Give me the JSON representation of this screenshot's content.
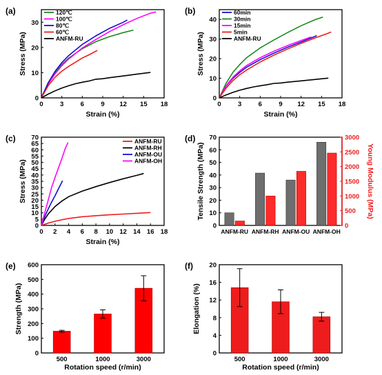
{
  "chart_data": [
    {
      "panel": "(a)",
      "type": "line",
      "xlabel": "Strain (%)",
      "ylabel": "Stress (MPa)",
      "xlim": [
        0,
        18
      ],
      "ylim": [
        0,
        35
      ],
      "xticks": [
        0,
        3,
        6,
        9,
        12,
        15,
        18
      ],
      "yticks": [
        0,
        10,
        20,
        30
      ],
      "legend_position": "top-left",
      "series": [
        {
          "name": "120℃",
          "color": "#1a8a1a",
          "points": [
            [
              0,
              0
            ],
            [
              1,
              6
            ],
            [
              2,
              10
            ],
            [
              3,
              13.3
            ],
            [
              4,
              15.8
            ],
            [
              6,
              19.5
            ],
            [
              8,
              22.3
            ],
            [
              10,
              24.3
            ],
            [
              12,
              25.9
            ],
            [
              13.5,
              26.9
            ]
          ]
        },
        {
          "name": "100℃",
          "color": "#ff00ff",
          "points": [
            [
              0,
              0
            ],
            [
              1,
              5.5
            ],
            [
              2,
              9.5
            ],
            [
              3,
              12.8
            ],
            [
              4,
              15.4
            ],
            [
              6,
              19.8
            ],
            [
              8,
              23.2
            ],
            [
              10,
              26.3
            ],
            [
              12,
              29
            ],
            [
              14,
              31.5
            ],
            [
              16,
              33.6
            ],
            [
              16.8,
              34.1
            ]
          ]
        },
        {
          "name": "80℃",
          "color": "#1111cc",
          "points": [
            [
              0,
              0
            ],
            [
              1,
              6
            ],
            [
              2,
              10.5
            ],
            [
              3,
              14
            ],
            [
              4,
              16.8
            ],
            [
              6,
              21.2
            ],
            [
              8,
              24.6
            ],
            [
              10,
              27.6
            ],
            [
              12,
              30
            ],
            [
              12.6,
              30.9
            ]
          ]
        },
        {
          "name": "60℃",
          "color": "#ee1c1c",
          "points": [
            [
              0,
              0
            ],
            [
              1,
              4.8
            ],
            [
              2,
              8.2
            ],
            [
              3,
              10.6
            ],
            [
              4,
              12.5
            ],
            [
              6,
              15.8
            ],
            [
              7,
              17.1
            ],
            [
              8.2,
              18.8
            ]
          ]
        },
        {
          "name": "ANFM-RU",
          "color": "#000000",
          "points": [
            [
              0,
              0
            ],
            [
              1,
              1.5
            ],
            [
              2,
              2.8
            ],
            [
              3,
              3.9
            ],
            [
              4,
              4.8
            ],
            [
              5,
              5.6
            ],
            [
              6,
              6.2
            ],
            [
              7,
              6.7
            ],
            [
              8,
              7.4
            ],
            [
              9,
              7.6
            ],
            [
              10,
              8
            ],
            [
              12,
              8.7
            ],
            [
              14,
              9.4
            ],
            [
              16,
              10.1
            ]
          ]
        }
      ]
    },
    {
      "panel": "(b)",
      "type": "line",
      "xlabel": "Strain (%)",
      "ylabel": "Stress (MPa)",
      "xlim": [
        0,
        18
      ],
      "ylim": [
        0,
        45
      ],
      "xticks": [
        0,
        3,
        6,
        9,
        12,
        15,
        18
      ],
      "yticks": [
        0,
        10,
        20,
        30,
        40
      ],
      "legend_position": "top-left",
      "series": [
        {
          "name": "60min",
          "color": "#1111cc",
          "points": [
            [
              0,
              0
            ],
            [
              1,
              6
            ],
            [
              2,
              10
            ],
            [
              3,
              13
            ],
            [
              4,
              15.6
            ],
            [
              6,
              19.5
            ],
            [
              8,
              22.8
            ],
            [
              10,
              25.8
            ],
            [
              12,
              28.5
            ],
            [
              14,
              31.3
            ],
            [
              14.3,
              31.8
            ]
          ]
        },
        {
          "name": "30min",
          "color": "#1a8a1a",
          "points": [
            [
              0,
              0
            ],
            [
              1,
              7.5
            ],
            [
              2,
              13
            ],
            [
              3,
              17
            ],
            [
              4,
              20.5
            ],
            [
              6,
              25.5
            ],
            [
              8,
              29.5
            ],
            [
              10,
              33.3
            ],
            [
              12,
              36.8
            ],
            [
              14,
              39.8
            ],
            [
              15.2,
              41.2
            ]
          ]
        },
        {
          "name": "15min",
          "color": "#ff00ff",
          "points": [
            [
              0,
              0
            ],
            [
              1,
              6.2
            ],
            [
              2,
              10.5
            ],
            [
              3,
              13.8
            ],
            [
              4,
              16.5
            ],
            [
              6,
              20.5
            ],
            [
              8,
              23.8
            ],
            [
              10,
              26.7
            ],
            [
              12,
              29.3
            ],
            [
              13.5,
              31.1
            ]
          ]
        },
        {
          "name": "5min",
          "color": "#ee1c1c",
          "points": [
            [
              0,
              0
            ],
            [
              1,
              5
            ],
            [
              2,
              8.8
            ],
            [
              3,
              11.8
            ],
            [
              4,
              14.2
            ],
            [
              6,
              18.3
            ],
            [
              8,
              21.8
            ],
            [
              10,
              24.9
            ],
            [
              12,
              27.8
            ],
            [
              14,
              30.5
            ],
            [
              16,
              33
            ],
            [
              16.4,
              33.6
            ]
          ]
        },
        {
          "name": "ANFM-RU",
          "color": "#000000",
          "points": [
            [
              0,
              0
            ],
            [
              1,
              1.5
            ],
            [
              2,
              2.8
            ],
            [
              3,
              3.9
            ],
            [
              4,
              4.8
            ],
            [
              5,
              5.6
            ],
            [
              6,
              6.2
            ],
            [
              7,
              6.7
            ],
            [
              8,
              7.4
            ],
            [
              9,
              7.6
            ],
            [
              10,
              8
            ],
            [
              12,
              8.7
            ],
            [
              14,
              9.4
            ],
            [
              16,
              10.1
            ]
          ]
        }
      ]
    },
    {
      "panel": "(c)",
      "type": "line",
      "xlabel": "Strain (%)",
      "ylabel": "Stress (MPa)",
      "xlim": [
        0,
        18
      ],
      "ylim": [
        0,
        70
      ],
      "xticks": [
        0,
        2,
        4,
        6,
        8,
        10,
        12,
        14,
        16,
        18
      ],
      "yticks": [
        0,
        5,
        10,
        15,
        20,
        25,
        30,
        35,
        40,
        45,
        50,
        55,
        60,
        65,
        70
      ],
      "legend_position": "top-right",
      "series": [
        {
          "name": "ANFM-RU",
          "color": "#ee1c1c",
          "points": [
            [
              0,
              0
            ],
            [
              1,
              1.8
            ],
            [
              2,
              3.3
            ],
            [
              3,
              4.5
            ],
            [
              4,
              5.5
            ],
            [
              6,
              6.9
            ],
            [
              8,
              7.7
            ],
            [
              10,
              8.4
            ],
            [
              12,
              9
            ],
            [
              14,
              9.6
            ],
            [
              16,
              10.2
            ]
          ]
        },
        {
          "name": "ANFM-RH",
          "color": "#000000",
          "points": [
            [
              0,
              0
            ],
            [
              0.5,
              5
            ],
            [
              1,
              9
            ],
            [
              2,
              15
            ],
            [
              3,
              19.3
            ],
            [
              4,
              22.8
            ],
            [
              6,
              27.2
            ],
            [
              8,
              30.8
            ],
            [
              10,
              34
            ],
            [
              12,
              37
            ],
            [
              14,
              39.7
            ],
            [
              15,
              41.2
            ]
          ]
        },
        {
          "name": "ANFM-OU",
          "color": "#1111cc",
          "points": [
            [
              0,
              0
            ],
            [
              0.5,
              7
            ],
            [
              1,
              13
            ],
            [
              1.5,
              18.5
            ],
            [
              2,
              23.5
            ],
            [
              2.5,
              29
            ],
            [
              3,
              34.3
            ],
            [
              3.1,
              35.5
            ]
          ]
        },
        {
          "name": "ANFM-OH",
          "color": "#ff00ff",
          "points": [
            [
              0,
              0
            ],
            [
              0.5,
              10
            ],
            [
              1,
              20
            ],
            [
              1.5,
              30
            ],
            [
              2,
              38
            ],
            [
              2.5,
              45.5
            ],
            [
              3,
              53
            ],
            [
              3.5,
              61
            ],
            [
              3.9,
              65.8
            ]
          ]
        }
      ]
    },
    {
      "panel": "(d)",
      "type": "bar",
      "categories": [
        "ANFM-RU",
        "ANFM-RH",
        "ANFM-OU",
        "ANFM-OH"
      ],
      "ylabel": "Tensile Strength (MPa)",
      "ylabel_right": "Young Modulus (MPa)",
      "ylim": [
        0,
        70
      ],
      "ylim_right": [
        0,
        3000
      ],
      "yticks": [
        0,
        10,
        20,
        30,
        40,
        50,
        60,
        70
      ],
      "yticks_right": [
        0,
        500,
        1000,
        1500,
        2000,
        2500,
        3000
      ],
      "series": [
        {
          "axis": "left",
          "color": "#6e6e6e",
          "values": [
            10,
            41.5,
            36,
            66
          ]
        },
        {
          "axis": "right",
          "color": "#ff2b2b",
          "values": [
            150,
            1000,
            1840,
            2460
          ]
        }
      ]
    },
    {
      "panel": "(e)",
      "type": "bar",
      "categories": [
        "500",
        "1000",
        "3000"
      ],
      "xlabel": "Rotation speed (r/min)",
      "ylabel": "Strength (MPa)",
      "ylim": [
        0,
        600
      ],
      "yticks": [
        0,
        100,
        200,
        300,
        400,
        500,
        600
      ],
      "color": "#ff0000",
      "values": [
        148,
        265,
        440
      ],
      "errors": [
        6,
        28,
        85
      ]
    },
    {
      "panel": "(f)",
      "type": "bar",
      "categories": [
        "500",
        "1000",
        "3000"
      ],
      "xlabel": "Rotation speed (r/min)",
      "ylabel": "Elongation (%)",
      "ylim": [
        0,
        20
      ],
      "yticks": [
        0,
        4,
        8,
        12,
        16,
        20
      ],
      "color": "#ee1c1c",
      "values": [
        14.8,
        11.6,
        8.2
      ],
      "errors": [
        4.3,
        2.7,
        1.0
      ]
    }
  ]
}
